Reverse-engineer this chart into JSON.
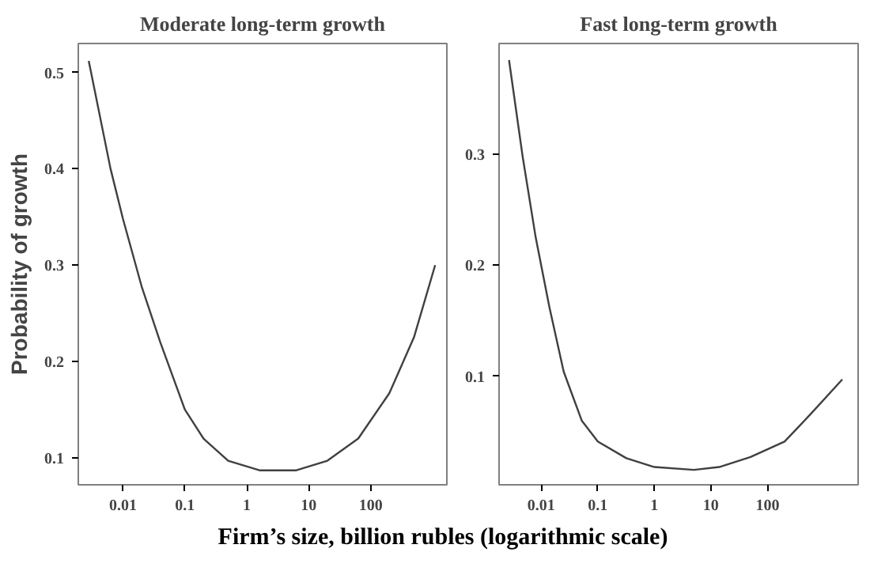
{
  "chart_data": [
    {
      "type": "line",
      "title": "Moderate long-term growth",
      "ylabel": "Probability of growth",
      "xlabel": "Firm’s size, billion rubles (logarithmic scale)",
      "log": "x",
      "grid": false,
      "marker": "none",
      "line_style": "solid",
      "x": [
        0.0028,
        0.0063,
        0.01,
        0.02,
        0.04,
        0.1,
        0.2,
        0.5,
        1.6,
        6.3,
        20,
        63,
        200,
        500,
        1100
      ],
      "series": [
        {
          "color": "#404040",
          "values": [
            0.512,
            0.4,
            0.348,
            0.278,
            0.22,
            0.15,
            0.12,
            0.097,
            0.087,
            0.087,
            0.097,
            0.12,
            0.167,
            0.225,
            0.3
          ]
        }
      ],
      "xlim": [
        0.0019,
        1700
      ],
      "ylim": [
        0.072,
        0.53
      ],
      "xticks": [
        0.01,
        0.1,
        1,
        10,
        100
      ],
      "yticks": [
        0.1,
        0.2,
        0.3,
        0.4,
        0.5
      ]
    },
    {
      "type": "line",
      "title": "Fast long-term growth",
      "log": "x",
      "grid": false,
      "marker": "none",
      "line_style": "solid",
      "x": [
        0.0027,
        0.0047,
        0.008,
        0.014,
        0.025,
        0.052,
        0.1,
        0.32,
        1,
        5,
        14,
        50,
        200,
        560,
        2100
      ],
      "series": [
        {
          "color": "#404040",
          "values": [
            0.385,
            0.298,
            0.225,
            0.162,
            0.104,
            0.06,
            0.041,
            0.026,
            0.018,
            0.0155,
            0.018,
            0.027,
            0.041,
            0.065,
            0.097
          ]
        }
      ],
      "xlim": [
        0.0018,
        4000
      ],
      "ylim": [
        0.002,
        0.4
      ],
      "xticks": [
        0.01,
        0.1,
        1,
        10,
        100
      ],
      "yticks": [
        0.1,
        0.2,
        0.3
      ]
    }
  ]
}
